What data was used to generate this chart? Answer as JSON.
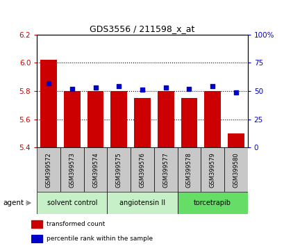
{
  "title": "GDS3556 / 211598_x_at",
  "samples": [
    "GSM399572",
    "GSM399573",
    "GSM399574",
    "GSM399575",
    "GSM399576",
    "GSM399577",
    "GSM399578",
    "GSM399579",
    "GSM399580"
  ],
  "transformed_count": [
    6.02,
    5.8,
    5.8,
    5.8,
    5.75,
    5.8,
    5.75,
    5.8,
    5.5
  ],
  "percentile_rank": [
    57,
    52,
    53,
    54,
    51,
    53,
    52,
    54,
    49
  ],
  "bar_bottom": 5.4,
  "ylim_left": [
    5.4,
    6.2
  ],
  "ylim_right": [
    0,
    100
  ],
  "yticks_left": [
    5.4,
    5.6,
    5.8,
    6.0,
    6.2
  ],
  "yticks_right": [
    0,
    25,
    50,
    75,
    100
  ],
  "ytick_labels_right": [
    "0",
    "25",
    "50",
    "75",
    "100%"
  ],
  "bar_color": "#cc0000",
  "dot_color": "#0000cc",
  "grid_lines": [
    5.6,
    5.8,
    6.0
  ],
  "agent_groups": [
    {
      "label": "solvent control",
      "start": 0,
      "end": 3,
      "color": "#c8f0c8"
    },
    {
      "label": "angiotensin II",
      "start": 3,
      "end": 6,
      "color": "#c8f0c8"
    },
    {
      "label": "torcetrapib",
      "start": 6,
      "end": 9,
      "color": "#66dd66"
    }
  ],
  "legend_items": [
    {
      "color": "#cc0000",
      "label": "transformed count"
    },
    {
      "color": "#0000cc",
      "label": "percentile rank within the sample"
    }
  ],
  "tick_label_color_left": "#cc0000",
  "tick_label_color_right": "#0000cc",
  "bar_width": 0.7,
  "dot_size": 18,
  "sample_box_color": "#c8c8c8",
  "fig_width": 4.1,
  "fig_height": 3.54,
  "dpi": 100
}
